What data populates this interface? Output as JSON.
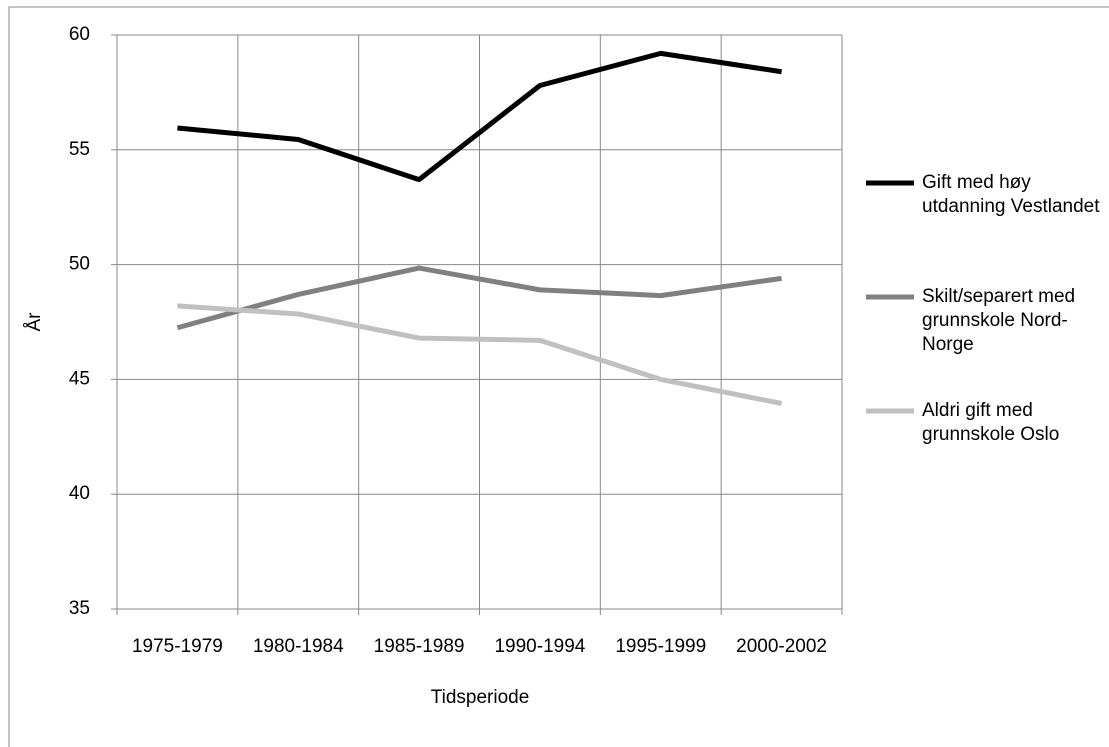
{
  "chart_data": {
    "type": "line",
    "categories": [
      "1975-1979",
      "1980-1984",
      "1985-1989",
      "1990-1994",
      "1995-1999",
      "2000-2002"
    ],
    "series": [
      {
        "name": "Gift med høy utdanning Vestlandet",
        "color": "#000000",
        "values": [
          55.95,
          55.45,
          53.7,
          57.8,
          59.2,
          58.4
        ]
      },
      {
        "name": "Skilt/separert med grunnskole Nord-Norge",
        "color": "#808080",
        "values": [
          47.25,
          48.7,
          49.85,
          48.9,
          48.65,
          49.4
        ]
      },
      {
        "name": "Aldri gift med grunnskole Oslo",
        "color": "#c0c0c0",
        "values": [
          48.2,
          47.85,
          46.8,
          46.7,
          45.0,
          43.95
        ]
      }
    ],
    "ylim": [
      35,
      60
    ],
    "yticks": [
      35,
      40,
      45,
      50,
      55,
      60
    ],
    "grid": true,
    "x_label": "Tidsperiode",
    "y_label": "År"
  }
}
